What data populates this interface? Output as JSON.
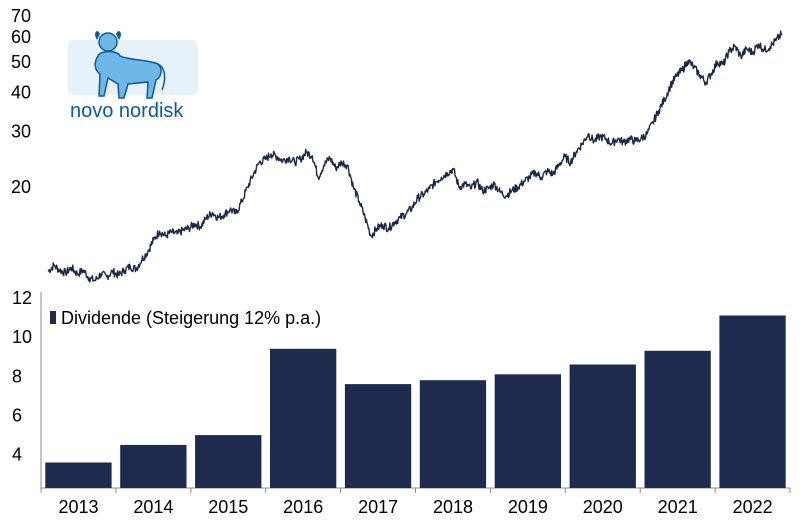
{
  "logo": {
    "text": "novo nordisk",
    "color": "#0b59a8",
    "accent": "#6db8e6"
  },
  "colors": {
    "line": "#1c2748",
    "bar": "#1f2a4f",
    "axis": "#8c8c8c"
  },
  "chart_data": [
    {
      "type": "line",
      "y_scale": "log",
      "y_ticks": [
        20,
        30,
        40,
        50,
        60,
        70
      ],
      "ylim": [
        10,
        72
      ],
      "x_range": [
        "2012-10",
        "2023-03"
      ],
      "series": [
        {
          "points": [
            [
              "2012-10",
              10.8
            ],
            [
              "2012-11",
              11.3
            ],
            [
              "2012-12",
              10.9
            ],
            [
              "2013-01",
              10.7
            ],
            [
              "2013-02",
              11.1
            ],
            [
              "2013-03",
              10.6
            ],
            [
              "2013-04",
              10.9
            ],
            [
              "2013-05",
              10.3
            ],
            [
              "2013-06",
              10.1
            ],
            [
              "2013-07",
              10.6
            ],
            [
              "2013-08",
              10.4
            ],
            [
              "2013-09",
              10.8
            ],
            [
              "2013-10",
              10.5
            ],
            [
              "2013-11",
              10.9
            ],
            [
              "2013-12",
              11.2
            ],
            [
              "2014-01",
              11.0
            ],
            [
              "2014-02",
              11.8
            ],
            [
              "2014-03",
              12.5
            ],
            [
              "2014-04",
              13.6
            ],
            [
              "2014-05",
              14.5
            ],
            [
              "2014-06",
              14.0
            ],
            [
              "2014-07",
              14.4
            ],
            [
              "2014-08",
              14.2
            ],
            [
              "2014-09",
              14.6
            ],
            [
              "2014-10",
              14.8
            ],
            [
              "2014-11",
              15.3
            ],
            [
              "2014-12",
              15.0
            ],
            [
              "2015-01",
              16.0
            ],
            [
              "2015-02",
              16.6
            ],
            [
              "2015-03",
              16.0
            ],
            [
              "2015-04",
              16.4
            ],
            [
              "2015-05",
              17.0
            ],
            [
              "2015-06",
              16.5
            ],
            [
              "2015-07",
              18.0
            ],
            [
              "2015-08",
              20.0
            ],
            [
              "2015-09",
              22.0
            ],
            [
              "2015-10",
              24.0
            ],
            [
              "2015-11",
              24.5
            ],
            [
              "2015-12",
              25.5
            ],
            [
              "2016-01",
              25.0
            ],
            [
              "2016-02",
              24.3
            ],
            [
              "2016-03",
              24.8
            ],
            [
              "2016-04",
              24.0
            ],
            [
              "2016-05",
              24.6
            ],
            [
              "2016-06",
              25.8
            ],
            [
              "2016-07",
              25.2
            ],
            [
              "2016-08",
              21.5
            ],
            [
              "2016-09",
              23.5
            ],
            [
              "2016-10",
              24.8
            ],
            [
              "2016-11",
              23.0
            ],
            [
              "2016-12",
              24.0
            ],
            [
              "2017-01",
              23.5
            ],
            [
              "2017-02",
              20.0
            ],
            [
              "2017-03",
              18.0
            ],
            [
              "2017-04",
              16.0
            ],
            [
              "2017-05",
              14.0
            ],
            [
              "2017-06",
              14.8
            ],
            [
              "2017-07",
              15.2
            ],
            [
              "2017-08",
              14.8
            ],
            [
              "2017-09",
              15.5
            ],
            [
              "2017-10",
              16.0
            ],
            [
              "2017-11",
              16.5
            ],
            [
              "2017-12",
              17.2
            ],
            [
              "2018-01",
              18.5
            ],
            [
              "2018-02",
              19.0
            ],
            [
              "2018-03",
              19.8
            ],
            [
              "2018-04",
              20.8
            ],
            [
              "2018-05",
              21.5
            ],
            [
              "2018-06",
              22.2
            ],
            [
              "2018-07",
              22.8
            ],
            [
              "2018-08",
              20.0
            ],
            [
              "2018-09",
              20.5
            ],
            [
              "2018-10",
              19.8
            ],
            [
              "2018-11",
              20.8
            ],
            [
              "2018-12",
              19.5
            ],
            [
              "2019-01",
              19.8
            ],
            [
              "2019-02",
              20.5
            ],
            [
              "2019-03",
              19.3
            ],
            [
              "2019-04",
              18.8
            ],
            [
              "2019-05",
              19.5
            ],
            [
              "2019-06",
              20.0
            ],
            [
              "2019-07",
              20.8
            ],
            [
              "2019-08",
              21.5
            ],
            [
              "2019-09",
              22.3
            ],
            [
              "2019-10",
              21.5
            ],
            [
              "2019-11",
              22.5
            ],
            [
              "2019-12",
              22.0
            ],
            [
              "2020-01",
              23.5
            ],
            [
              "2020-02",
              25.0
            ],
            [
              "2020-03",
              24.0
            ],
            [
              "2020-04",
              26.0
            ],
            [
              "2020-05",
              27.5
            ],
            [
              "2020-06",
              29.5
            ],
            [
              "2020-07",
              28.0
            ],
            [
              "2020-08",
              29.0
            ],
            [
              "2020-09",
              28.5
            ],
            [
              "2020-10",
              27.5
            ],
            [
              "2020-11",
              28.5
            ],
            [
              "2020-12",
              27.8
            ],
            [
              "2021-01",
              28.5
            ],
            [
              "2021-02",
              28.0
            ],
            [
              "2021-03",
              28.5
            ],
            [
              "2021-04",
              29.5
            ],
            [
              "2021-05",
              32.0
            ],
            [
              "2021-06",
              35.0
            ],
            [
              "2021-07",
              38.0
            ],
            [
              "2021-08",
              42.0
            ],
            [
              "2021-09",
              45.0
            ],
            [
              "2021-10",
              47.0
            ],
            [
              "2021-11",
              50.5
            ],
            [
              "2021-12",
              48.0
            ],
            [
              "2022-01",
              45.5
            ],
            [
              "2022-02",
              43.0
            ],
            [
              "2022-03",
              46.0
            ],
            [
              "2022-04",
              50.0
            ],
            [
              "2022-05",
              49.0
            ],
            [
              "2022-06",
              54.0
            ],
            [
              "2022-07",
              56.0
            ],
            [
              "2022-08",
              52.0
            ],
            [
              "2022-09",
              55.0
            ],
            [
              "2022-10",
              53.5
            ],
            [
              "2022-11",
              57.0
            ],
            [
              "2022-12",
              54.5
            ],
            [
              "2023-01",
              56.0
            ],
            [
              "2023-02",
              58.5
            ],
            [
              "2023-03",
              61.5
            ]
          ]
        }
      ]
    },
    {
      "type": "bar",
      "categories": [
        "2013",
        "2014",
        "2015",
        "2016",
        "2017",
        "2018",
        "2019",
        "2020",
        "2021",
        "2022"
      ],
      "series": [
        {
          "name": "Dividende (Steigerung 12% p.a.)",
          "values": [
            3.6,
            4.5,
            5.0,
            9.4,
            7.6,
            7.8,
            8.1,
            8.6,
            9.3,
            11.1
          ]
        }
      ],
      "y_ticks": [
        4,
        6,
        8,
        10,
        12
      ],
      "ylim": [
        2.3,
        12.3
      ],
      "legend_position": "top-left"
    }
  ]
}
